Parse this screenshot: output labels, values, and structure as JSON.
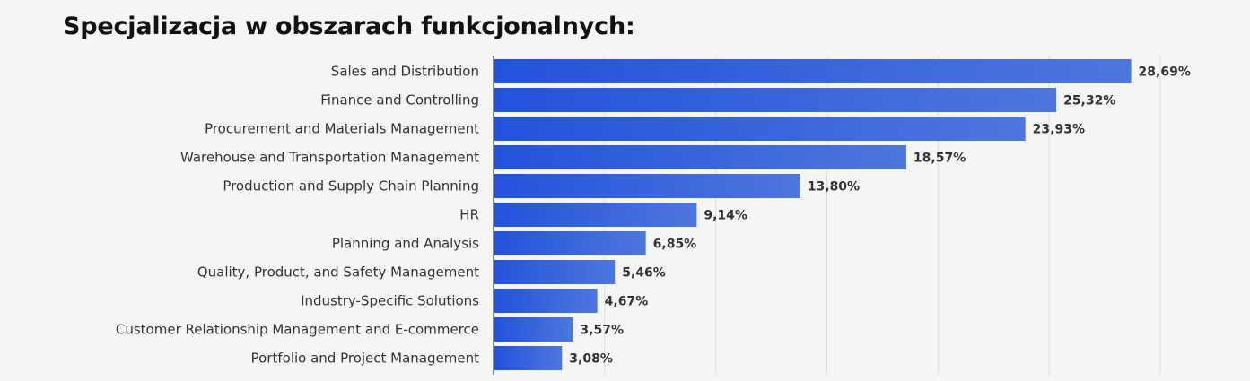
{
  "title": "Specjalizacja w obszarach funkcjonalnych:",
  "chart_data": {
    "type": "bar",
    "orientation": "horizontal",
    "title": "Specjalizacja w obszarach funkcjonalnych:",
    "xlabel": "",
    "ylabel": "",
    "categories": [
      "Sales and Distribution",
      "Finance and Controlling",
      "Procurement and Materials Management",
      "Warehouse and Transportation Management",
      "Production and Supply Chain Planning",
      "HR",
      "Planning and Analysis",
      "Quality, Product, and Safety Management",
      "Industry-Specific Solutions",
      "Customer Relationship Management and E-commerce",
      "Portfolio and Project Management"
    ],
    "values": [
      28.69,
      25.32,
      23.93,
      18.57,
      13.8,
      9.14,
      6.85,
      5.46,
      4.67,
      3.57,
      3.08
    ],
    "value_labels": [
      "28,69%",
      "25,32%",
      "23,93%",
      "18,57%",
      "13,80%",
      "9,14%",
      "6,85%",
      "5,46%",
      "4,67%",
      "3,57%",
      "3,08%"
    ],
    "xlim": [
      0,
      30
    ],
    "grid": true,
    "legend": "none",
    "colors": {
      "bar_start": "#2352dc",
      "bar_end": "#4d77dc"
    }
  }
}
